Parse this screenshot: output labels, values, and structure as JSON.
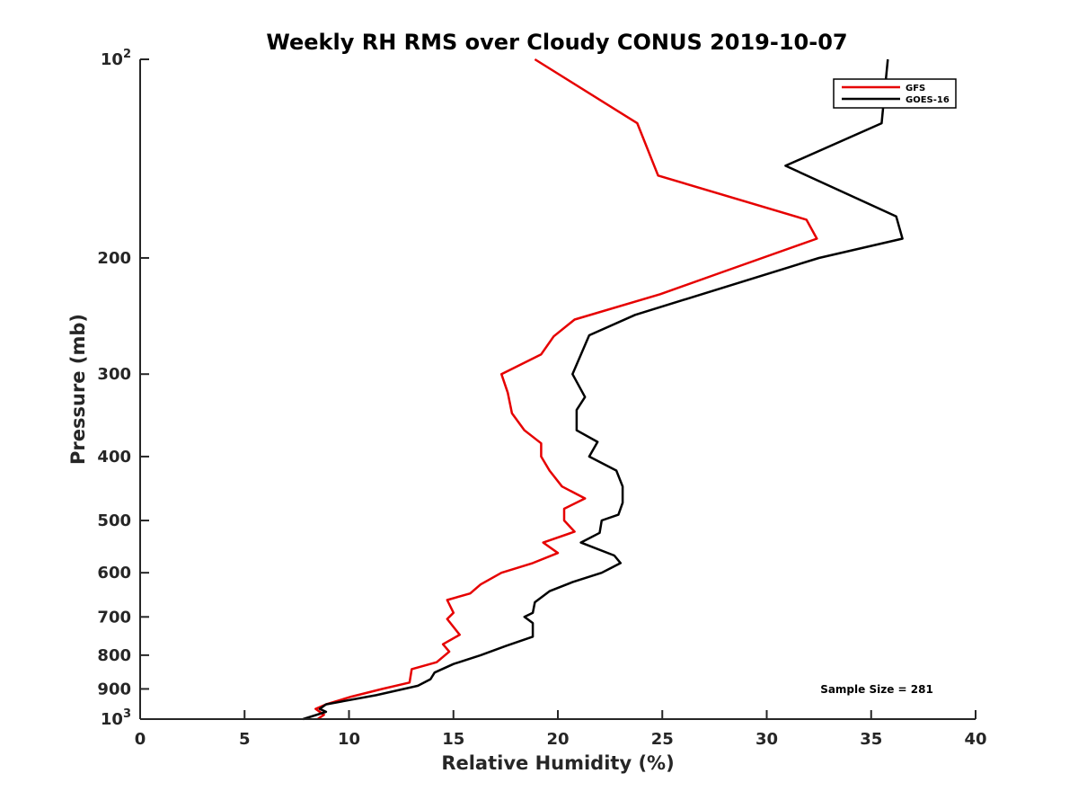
{
  "chart_data": {
    "type": "line",
    "title": "Weekly RH RMS over Cloudy CONUS 2019-10-07",
    "xlabel": "Relative Humidity (%)",
    "ylabel": "Pressure (mb)",
    "xlim": [
      0,
      40
    ],
    "ylim": [
      100,
      1000
    ],
    "y_scale": "log",
    "y_reversed": true,
    "grid": false,
    "legend_position": "top-right",
    "x_ticks": [
      "0",
      "5",
      "10",
      "15",
      "20",
      "25",
      "30",
      "35",
      "40"
    ],
    "y_ticks": [
      {
        "value": 100,
        "base": "10",
        "exp": "2"
      },
      {
        "value": 200,
        "label": "200"
      },
      {
        "value": 300,
        "label": "300"
      },
      {
        "value": 400,
        "label": "400"
      },
      {
        "value": 500,
        "label": "500"
      },
      {
        "value": 600,
        "label": "600"
      },
      {
        "value": 700,
        "label": "700"
      },
      {
        "value": 800,
        "label": "800"
      },
      {
        "value": 900,
        "label": "900"
      },
      {
        "value": 1000,
        "base": "10",
        "exp": "3"
      }
    ],
    "series": [
      {
        "name": "GFS",
        "color": "#e60000",
        "points": [
          [
            18.9,
            100
          ],
          [
            23.8,
            125
          ],
          [
            24.8,
            150
          ],
          [
            31.9,
            175
          ],
          [
            32.4,
            187
          ],
          [
            27.9,
            210
          ],
          [
            24.9,
            227
          ],
          [
            20.8,
            248
          ],
          [
            19.8,
            263
          ],
          [
            19.2,
            280
          ],
          [
            17.3,
            300
          ],
          [
            17.6,
            320
          ],
          [
            17.8,
            344
          ],
          [
            18.4,
            365
          ],
          [
            19.2,
            382
          ],
          [
            19.2,
            400
          ],
          [
            19.6,
            420
          ],
          [
            20.2,
            444
          ],
          [
            21.3,
            463
          ],
          [
            20.3,
            480
          ],
          [
            20.3,
            500
          ],
          [
            20.8,
            520
          ],
          [
            19.3,
            540
          ],
          [
            20.0,
            560
          ],
          [
            18.8,
            580
          ],
          [
            17.3,
            600
          ],
          [
            16.3,
            625
          ],
          [
            15.8,
            645
          ],
          [
            14.7,
            660
          ],
          [
            15.0,
            690
          ],
          [
            14.7,
            705
          ],
          [
            15.3,
            745
          ],
          [
            14.5,
            770
          ],
          [
            14.8,
            790
          ],
          [
            14.2,
            820
          ],
          [
            13.0,
            840
          ],
          [
            12.9,
            880
          ],
          [
            11.6,
            900
          ],
          [
            10.1,
            925
          ],
          [
            8.9,
            950
          ],
          [
            8.4,
            965
          ],
          [
            8.8,
            985
          ],
          [
            8.5,
            1000
          ]
        ]
      },
      {
        "name": "GOES-16",
        "color": "#000000",
        "points": [
          [
            35.8,
            100
          ],
          [
            35.5,
            125
          ],
          [
            30.9,
            145
          ],
          [
            36.2,
            173
          ],
          [
            36.5,
            187
          ],
          [
            32.5,
            200
          ],
          [
            23.7,
            244
          ],
          [
            21.5,
            262
          ],
          [
            20.7,
            300
          ],
          [
            21.3,
            325
          ],
          [
            20.9,
            340
          ],
          [
            20.9,
            365
          ],
          [
            21.9,
            380
          ],
          [
            21.5,
            400
          ],
          [
            22.8,
            420
          ],
          [
            23.1,
            444
          ],
          [
            23.1,
            470
          ],
          [
            22.9,
            490
          ],
          [
            22.1,
            500
          ],
          [
            22.0,
            522
          ],
          [
            21.1,
            540
          ],
          [
            22.7,
            565
          ],
          [
            23.0,
            580
          ],
          [
            22.1,
            600
          ],
          [
            20.7,
            620
          ],
          [
            19.6,
            640
          ],
          [
            18.9,
            665
          ],
          [
            18.8,
            690
          ],
          [
            18.4,
            700
          ],
          [
            18.8,
            715
          ],
          [
            18.8,
            750
          ],
          [
            17.5,
            775
          ],
          [
            16.3,
            800
          ],
          [
            15.0,
            825
          ],
          [
            14.1,
            850
          ],
          [
            13.9,
            870
          ],
          [
            13.3,
            890
          ],
          [
            11.3,
            920
          ],
          [
            8.9,
            950
          ],
          [
            8.6,
            965
          ],
          [
            8.9,
            975
          ],
          [
            7.8,
            1000
          ]
        ]
      }
    ],
    "annotation": "Sample Size = 281"
  }
}
